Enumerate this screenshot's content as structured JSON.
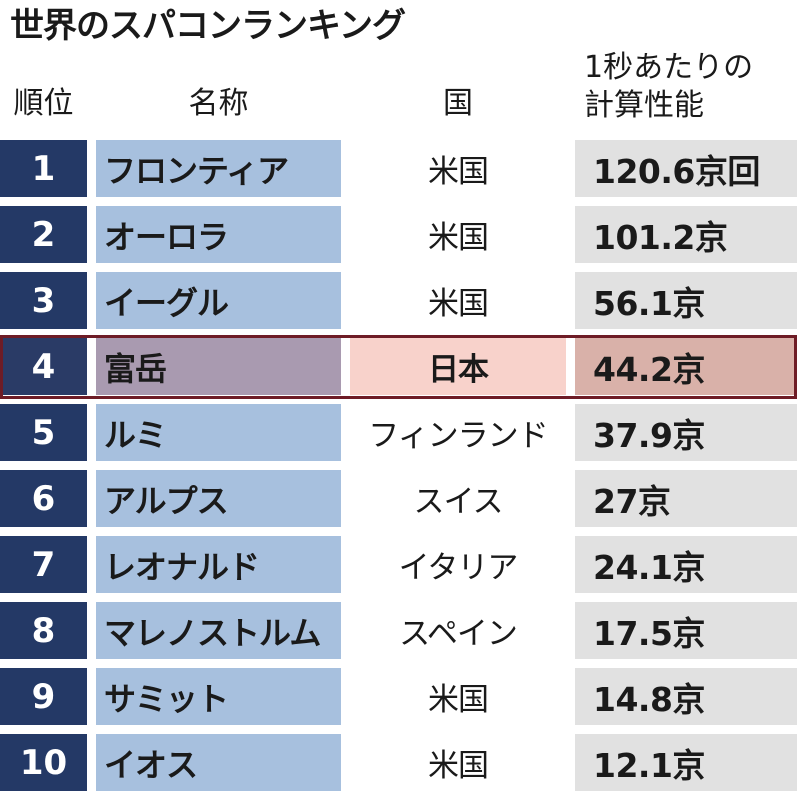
{
  "title": "世界のスパコンランキング",
  "headers": {
    "rank": "順位",
    "name": "名称",
    "country": "国",
    "perf_line1": "1秒あたりの",
    "perf_line2": "計算性能"
  },
  "highlight_rank": "4",
  "colors": {
    "rank_bg": "#243966",
    "name_bg": "#a7c0de",
    "perf_bg": "#e1e1e1",
    "highlight_border": "#6e1c26",
    "highlight_country_bg": "#f8d2cb"
  },
  "rows": [
    {
      "rank": "1",
      "name": "フロンティア",
      "country": "米国",
      "perf": "120.6京回"
    },
    {
      "rank": "2",
      "name": "オーロラ",
      "country": "米国",
      "perf": "101.2京"
    },
    {
      "rank": "3",
      "name": "イーグル",
      "country": "米国",
      "perf": "56.1京"
    },
    {
      "rank": "4",
      "name": "富岳",
      "country": "日本",
      "perf": "44.2京"
    },
    {
      "rank": "5",
      "name": "ルミ",
      "country": "フィンランド",
      "perf": "37.9京"
    },
    {
      "rank": "6",
      "name": "アルプス",
      "country": "スイス",
      "perf": "27京"
    },
    {
      "rank": "7",
      "name": "レオナルド",
      "country": "イタリア",
      "perf": "24.1京"
    },
    {
      "rank": "8",
      "name": "マレノストルム",
      "country": "スペイン",
      "perf": "17.5京"
    },
    {
      "rank": "9",
      "name": "サミット",
      "country": "米国",
      "perf": "14.8京"
    },
    {
      "rank": "10",
      "name": "イオス",
      "country": "米国",
      "perf": "12.1京"
    }
  ]
}
